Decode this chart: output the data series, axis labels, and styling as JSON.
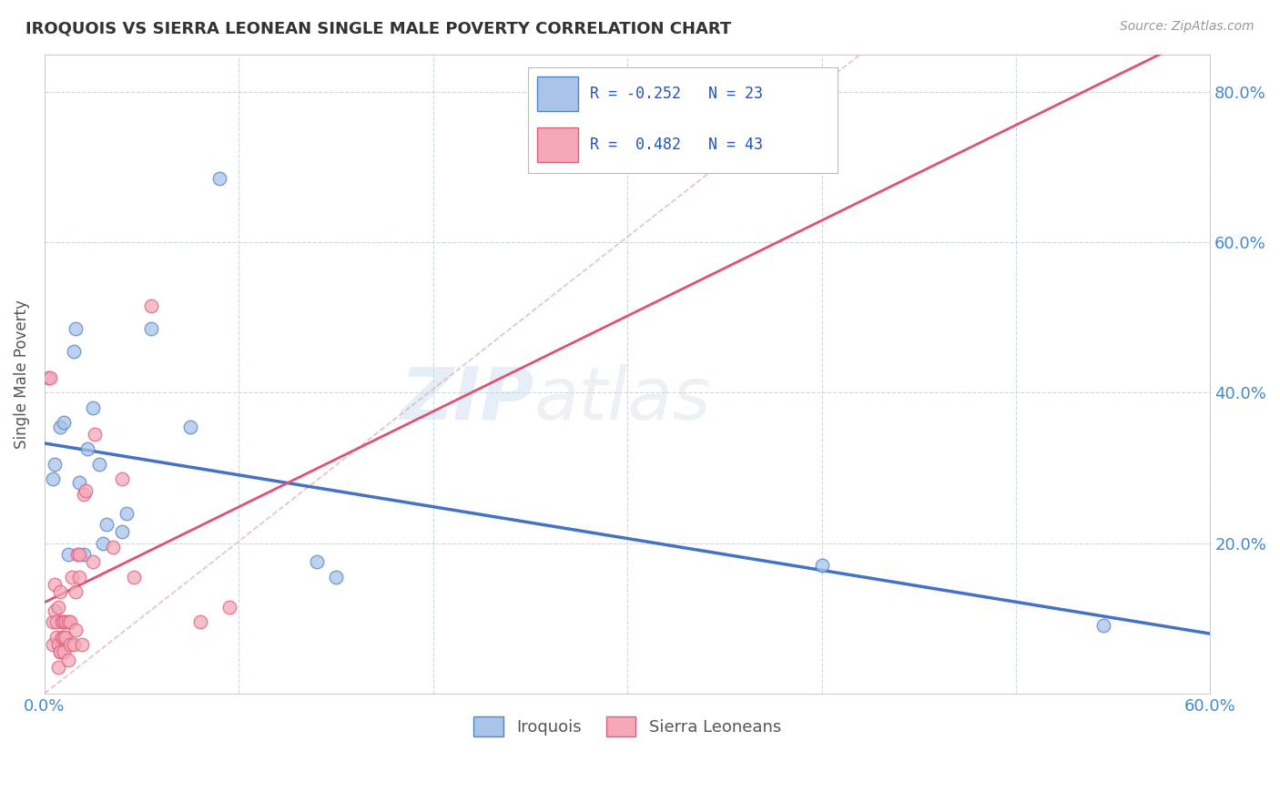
{
  "title": "IROQUOIS VS SIERRA LEONEAN SINGLE MALE POVERTY CORRELATION CHART",
  "source": "Source: ZipAtlas.com",
  "ylabel": "Single Male Poverty",
  "xlim": [
    0.0,
    0.6
  ],
  "ylim": [
    0.0,
    0.85
  ],
  "ytick_vals": [
    0.2,
    0.4,
    0.6,
    0.8
  ],
  "xtick_vals": [
    0.0,
    0.1,
    0.2,
    0.3,
    0.4,
    0.5,
    0.6
  ],
  "legend_labels": [
    "Iroquois",
    "Sierra Leoneans"
  ],
  "R_iroquois": -0.252,
  "N_iroquois": 23,
  "R_sierra": 0.482,
  "N_sierra": 43,
  "color_iroquois_fill": "#a8c4e8",
  "color_sierra_fill": "#f4a8b8",
  "color_iroquois_edge": "#5585c8",
  "color_sierra_edge": "#e06080",
  "color_iroquois_line": "#4472c4",
  "color_sierra_line": "#e05070",
  "color_diagonal": "#e0b0c0",
  "watermark_zip": "ZIP",
  "watermark_atlas": "atlas",
  "iroquois_x": [
    0.004,
    0.005,
    0.008,
    0.01,
    0.012,
    0.015,
    0.016,
    0.018,
    0.02,
    0.022,
    0.025,
    0.028,
    0.03,
    0.032,
    0.04,
    0.042,
    0.055,
    0.075,
    0.09,
    0.14,
    0.15,
    0.4,
    0.545
  ],
  "iroquois_y": [
    0.285,
    0.305,
    0.355,
    0.36,
    0.185,
    0.455,
    0.485,
    0.28,
    0.185,
    0.325,
    0.38,
    0.305,
    0.2,
    0.225,
    0.215,
    0.24,
    0.485,
    0.355,
    0.685,
    0.175,
    0.155,
    0.17,
    0.09
  ],
  "sierra_x": [
    0.002,
    0.003,
    0.004,
    0.004,
    0.005,
    0.005,
    0.006,
    0.006,
    0.007,
    0.007,
    0.007,
    0.008,
    0.008,
    0.008,
    0.009,
    0.009,
    0.01,
    0.01,
    0.01,
    0.011,
    0.011,
    0.012,
    0.012,
    0.013,
    0.013,
    0.014,
    0.015,
    0.016,
    0.016,
    0.017,
    0.018,
    0.018,
    0.019,
    0.02,
    0.021,
    0.025,
    0.026,
    0.035,
    0.04,
    0.046,
    0.055,
    0.08,
    0.095
  ],
  "sierra_y": [
    0.42,
    0.42,
    0.065,
    0.095,
    0.11,
    0.145,
    0.075,
    0.095,
    0.035,
    0.065,
    0.115,
    0.055,
    0.135,
    0.055,
    0.075,
    0.095,
    0.055,
    0.075,
    0.095,
    0.075,
    0.095,
    0.045,
    0.095,
    0.065,
    0.095,
    0.155,
    0.065,
    0.085,
    0.135,
    0.185,
    0.155,
    0.185,
    0.065,
    0.265,
    0.27,
    0.175,
    0.345,
    0.195,
    0.285,
    0.155,
    0.515,
    0.095,
    0.115
  ]
}
